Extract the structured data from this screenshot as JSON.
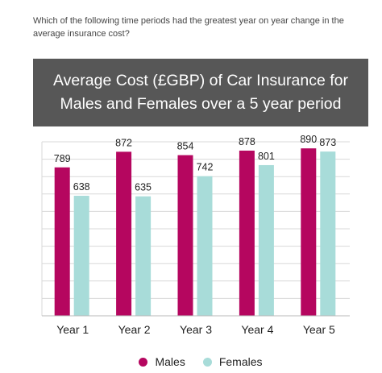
{
  "question": "Which of the following time periods had the greatest year on year change in the average insurance cost?",
  "colors": {
    "males": "#b5065f",
    "females": "#a8dcd9",
    "title_band": "#575757",
    "grid": "#d8d8d8"
  },
  "chart_data": {
    "type": "bar",
    "title": "Average Cost (£GBP) of Car Insurance for Males and Females over a 5 year period",
    "xlabel": "",
    "ylabel": "",
    "categories": [
      "Year 1",
      "Year 2",
      "Year 3",
      "Year 4",
      "Year 5"
    ],
    "series": [
      {
        "name": "Males",
        "values": [
          789,
          872,
          854,
          878,
          890
        ]
      },
      {
        "name": "Females",
        "values": [
          638,
          635,
          742,
          801,
          873
        ]
      }
    ],
    "ylim": [
      0,
      925
    ],
    "grid": true,
    "legend_position": "bottom-center"
  }
}
